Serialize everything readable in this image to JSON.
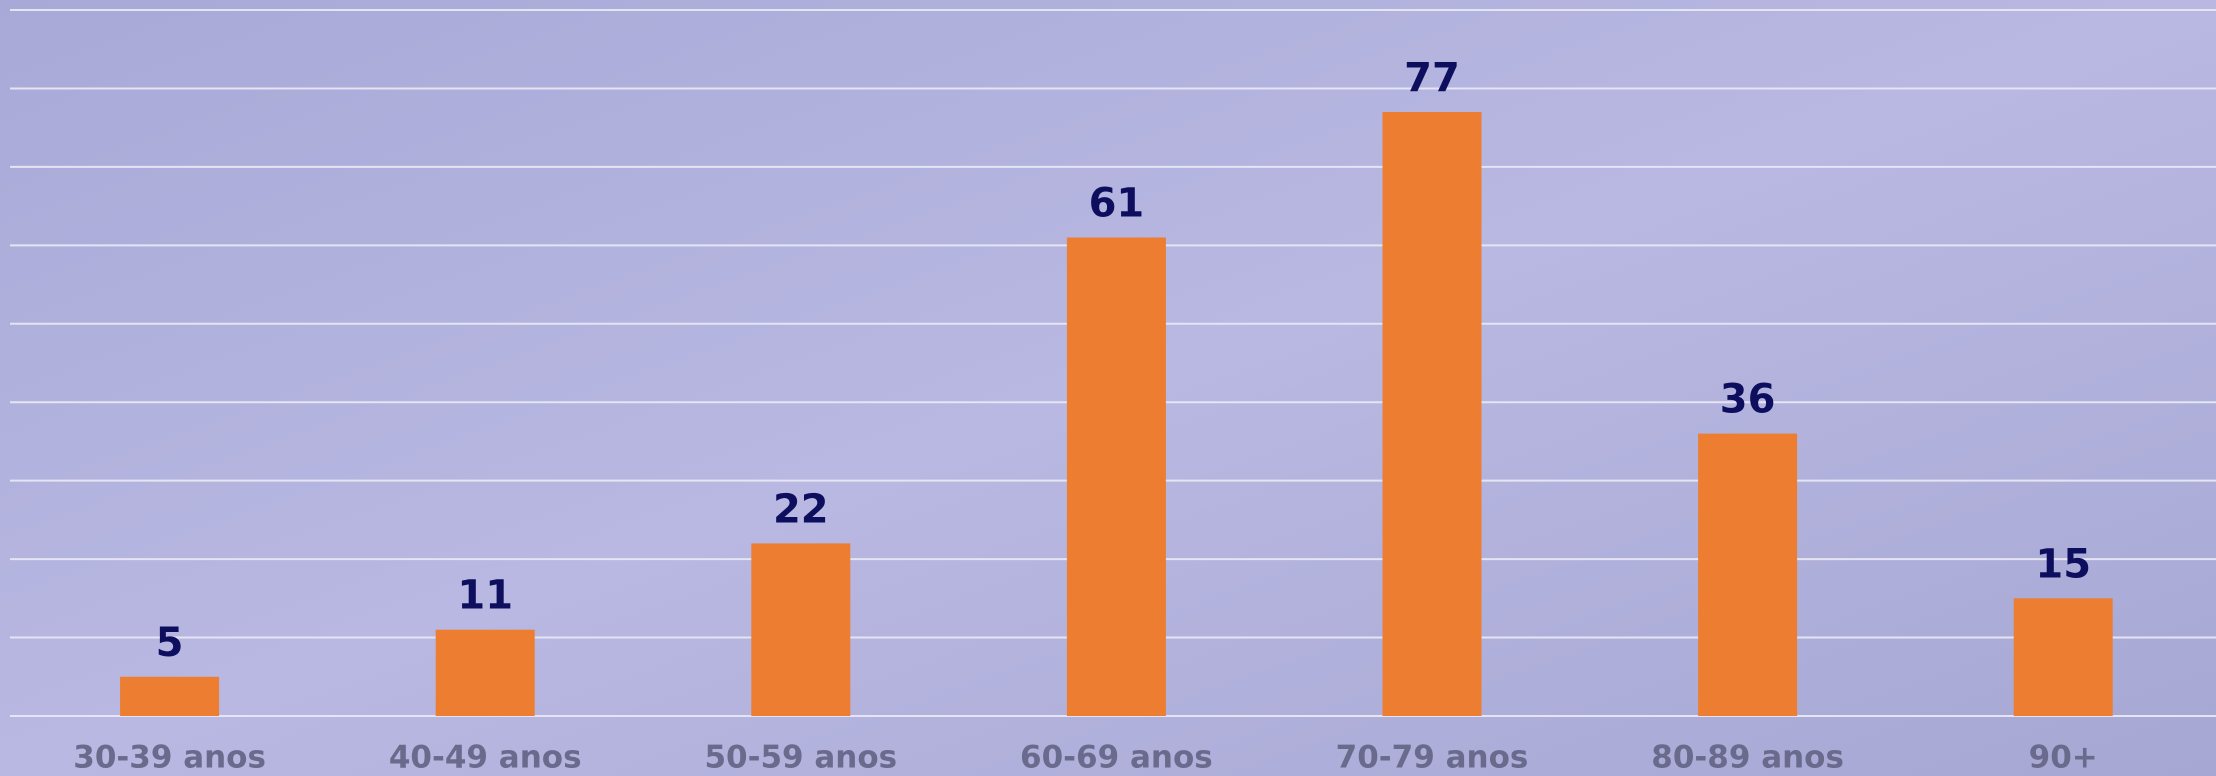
{
  "chart_data": {
    "type": "bar",
    "categories": [
      "30-39 anos",
      "40-49 anos",
      "50-59 anos",
      "60-69 anos",
      "70-79 anos",
      "80-89 anos",
      "90+"
    ],
    "values": [
      5,
      11,
      22,
      61,
      77,
      36,
      15
    ],
    "color": "#ed7d31",
    "ylim": [
      0,
      90
    ],
    "yticks": [
      0,
      10,
      20,
      30,
      40,
      50,
      60,
      70,
      80,
      90
    ],
    "grid": true
  }
}
